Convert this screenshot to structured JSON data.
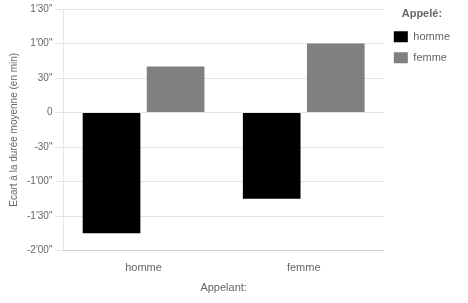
{
  "chart_data": {
    "type": "bar",
    "categories": [
      "homme",
      "femme"
    ],
    "series": [
      {
        "name": "homme",
        "color": "#000000",
        "values": [
          -105,
          -75
        ]
      },
      {
        "name": "femme",
        "color": "#808080",
        "values": [
          40,
          60
        ]
      }
    ],
    "xlabel": "Appelant:",
    "ylabel": "Ecart à la durée moyenne (en min)",
    "legend_title": "Appelé:",
    "ylim": [
      -120,
      90
    ],
    "yticks": [
      {
        "value": -120,
        "label": "-2'00\""
      },
      {
        "value": -90,
        "label": "-1'30\""
      },
      {
        "value": -60,
        "label": "-1'00\""
      },
      {
        "value": -30,
        "label": "-30\""
      },
      0,
      {
        "value": 30,
        "label": "30\""
      },
      {
        "value": 60,
        "label": "1'00\""
      },
      {
        "value": 90,
        "label": "1'30\""
      }
    ],
    "grid": "y",
    "legend": "right"
  }
}
